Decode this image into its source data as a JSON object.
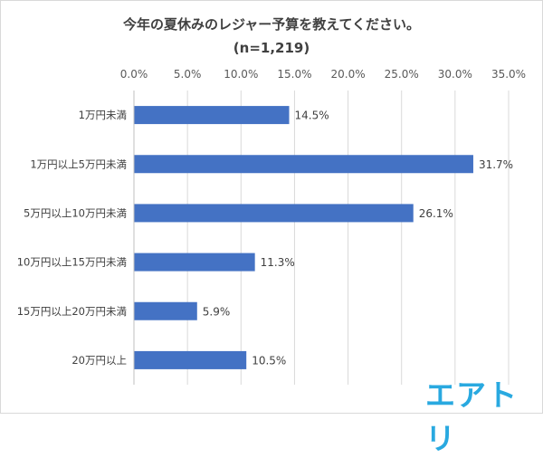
{
  "chart_data": {
    "type": "bar",
    "orientation": "horizontal",
    "title": "今年の夏休みのレジャー予算を教えてください。",
    "subtitle": "(n=1,219)",
    "categories": [
      "1万円未満",
      "1万円以上5万円未満",
      "5万円以上10万円未満",
      "10万円以上15万円未満",
      "15万円以上20万円未満",
      "20万円以上"
    ],
    "values": [
      14.5,
      31.7,
      26.1,
      11.3,
      5.9,
      10.5
    ],
    "value_labels": [
      "14.5%",
      "31.7%",
      "26.1%",
      "11.3%",
      "5.9%",
      "10.5%"
    ],
    "xlim": [
      0,
      35
    ],
    "xticks": [
      0,
      5,
      10,
      15,
      20,
      25,
      30,
      35
    ],
    "xtick_labels": [
      "0.0%",
      "5.0%",
      "10.0%",
      "15.0%",
      "20.0%",
      "25.0%",
      "30.0%",
      "35.0%"
    ],
    "x_axis_position": "top",
    "grid": true,
    "bar_color": "#4472c4",
    "grid_color": "#d9d9d9"
  },
  "brand": {
    "logo_text": "エアトリ",
    "color": "#29a9e0"
  }
}
